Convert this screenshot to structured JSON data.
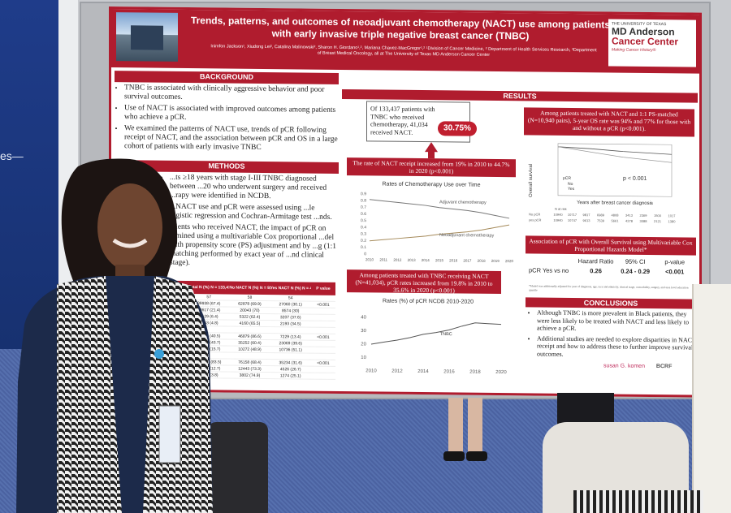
{
  "banner": {
    "text": "es—"
  },
  "poster": {
    "title": "Trends, patterns, and outcomes of neoadjuvant chemotherapy (NACT) use among patients with early invasive triple negative breast cancer (TNBC)",
    "authors": "Inimfon Jackson¹, Xiudong Lei², Catalina Malinowski², Sharon H. Giordano¹,², Mariana Chavez-MacGregor¹,² ¹Division of Cancer Medicine, ² Department of Health Services Research, ³Department of Breast Medical Oncology, all at The University of Texas MD Anderson Cancer Center",
    "logo": {
      "line1": "THE UNIVERSITY OF TEXAS",
      "line2": "MD Anderson",
      "line3": "Cancer Center",
      "tagline": "Making Cancer History®"
    },
    "background": {
      "heading": "BACKGROUND",
      "bullets": [
        "TNBC is associated with clinically aggressive behavior and poor survival outcomes.",
        "Use of NACT is associated with improved outcomes among patients who achieve a pCR.",
        "We examined the patterns of NACT use, trends of pCR following receipt of NACT, and the association between pCR and OS in a large cohort of patients with early invasive TNBC"
      ]
    },
    "methods": {
      "heading": "METHODS",
      "bullets": [
        "...ts ≥18 years with stage I-III TNBC diagnosed between ...20 who underwent surgery and received ...rapy were identified in NCDB.",
        "...NACT use and pCR were assessed using ...le logistic regression and Cochran-Armitage test ...nds.",
        "...ients who received NACT, the impact of pCR on ...mined using a multivariable Cox proportional ...del with propensity score (PS) adjustment and by ...g (1:1 matching performed by exact year of ...nd clinical stage)."
      ]
    },
    "table": {
      "headers": [
        "",
        "Total N (%)\nN = 133,437",
        "No NACT N (%)\nN = 92,403",
        "Yes NACT N (%)\nN = 41,034",
        "P value"
      ],
      "rows": [
        [
          "",
          "57",
          "58",
          "54",
          ""
        ],
        [
          "",
          "89938 (67.4)",
          "62878 (69.9)",
          "27060 (30.1)",
          "<0.001"
        ],
        [
          "",
          "28617 (21.4)",
          "20043 (70)",
          "8574 (30)",
          ""
        ],
        [
          "",
          "8529 (6.4)",
          "5322 (62.4)",
          "3207 (37.6)",
          ""
        ],
        [
          "",
          "6353 (4.8)",
          "4160 (65.5)",
          "2193 (34.5)",
          ""
        ],
        [
          "",
          "",
          "",
          "",
          ""
        ],
        [
          "",
          "54108 (40.5)",
          "46879 (86.6)",
          "7229 (13.4)",
          "<0.001"
        ],
        [
          "",
          "58321 (43.7)",
          "35252 (60.4)",
          "23069 (39.6)",
          ""
        ],
        [
          "",
          "21008 (15.7)",
          "10272 (48.9)",
          "10736 (51.1)",
          ""
        ],
        [
          "",
          "",
          "",
          "",
          ""
        ],
        [
          "",
          "111392 (83.5)",
          "76158 (68.4)",
          "35234 (31.6)",
          "<0.001"
        ],
        [
          "",
          "16969 (12.7)",
          "12443 (73.3)",
          "4526 (26.7)",
          ""
        ],
        [
          "",
          "5076 (3.8)",
          "3802 (74.9)",
          "1274 (25.1)",
          ""
        ]
      ]
    },
    "results_heading": "RESULTS",
    "summary_box": "Of 133,437 patients with TNBC who received chemotherapy, 41,034 received NACT.",
    "summary_pill": "30.75%",
    "nact_callout": "The rate of NACT receipt increased from 19% in 2010 to 44.7% in 2020 (p<0.001)",
    "pcr_callout": "Among patients treated with TNBC receiving NACT (N=41,034), pCR rates increased from 19.8% in 2010 to 35.6% in 2020 (p<0.001)",
    "os_callout": "Among patients treated with NACT and 1:1 PS-matched (N=10,940 pairs), 5-year OS rate was 94% and 77% for those with and without a pCR (p<0.001).",
    "km": {
      "ylabel": "Overall survival",
      "xlabel": "Years after breast cancer diagnosis",
      "legend_title": "pCR",
      "legend": [
        "No",
        "Yes"
      ],
      "pvalue": "p < 0.001",
      "risk_label": "N at risk",
      "risk_rows": [
        {
          "label": "No pCR",
          "values": [
            "10940",
            "10717",
            "9817",
            "6989",
            "4808",
            "3413",
            "2369",
            "1500",
            "1017"
          ]
        },
        {
          "label": "yes pCR",
          "values": [
            "10940",
            "10747",
            "9613",
            "7539",
            "5661",
            "4378",
            "3088",
            "2121",
            "1380"
          ]
        }
      ]
    },
    "assoc": {
      "heading": "Association of pCR with Overall Survival using Multivariable Cox Proportional Hazards Model*",
      "cols": [
        "Hazard Ratio",
        "95% CI",
        "p-value"
      ],
      "row": [
        "pCR Yes vs no",
        "0.26",
        "0.24 - 0.29",
        "<0.001"
      ],
      "note": "*Model was additionally adjusted for year of diagnosis, age, race and ethnicity, clinical stage, comorbidity, surgery, and area level education quartile"
    },
    "conclusions": {
      "heading": "CONCLUSIONS",
      "bullets": [
        "Although TNBC is more prevalent in Black patients, they were less likely to be treated with NACT and less likely to achieve a pCR.",
        "Additional studies are needed to explore disparities in NACT receipt and how to address these to further improve survival outcomes."
      ]
    },
    "sponsors": [
      "susan G. komen",
      "BCRF"
    ]
  },
  "chart_data": [
    {
      "type": "line",
      "title": "Rates of Chemotherapy Use over Time",
      "x": [
        "2010",
        "2011",
        "2012",
        "2013",
        "2014",
        "2015",
        "2016",
        "2017",
        "2018",
        "2019",
        "2020"
      ],
      "ylim": [
        0,
        0.9
      ],
      "yticks": [
        "0.9",
        "0.8",
        "0.7",
        "0.6",
        "0.5",
        "0.4",
        "0.3",
        "0.2",
        "0.1",
        "0"
      ],
      "series": [
        {
          "name": "Adjuvant chemotherapy",
          "values": [
            0.81,
            0.79,
            0.77,
            0.75,
            0.73,
            0.7,
            0.68,
            0.66,
            0.63,
            0.59,
            0.55
          ]
        },
        {
          "name": "Neoadjuvant chemotherapy",
          "values": [
            0.19,
            0.21,
            0.23,
            0.25,
            0.27,
            0.3,
            0.32,
            0.34,
            0.37,
            0.41,
            0.45
          ]
        }
      ]
    },
    {
      "type": "line",
      "title": "Rates (%) of pCR NCDB 2010-2020",
      "x": [
        2010,
        2011,
        2012,
        2013,
        2014,
        2015,
        2016,
        2017,
        2018,
        2019,
        2020
      ],
      "xticks": [
        "2010",
        "2012",
        "2014",
        "2016",
        "2018",
        "2020"
      ],
      "yticks": [
        "40",
        "30",
        "20",
        "10"
      ],
      "ylim": [
        5,
        45
      ],
      "series": [
        {
          "name": "TNBC",
          "values": [
            19.8,
            21.5,
            23.0,
            25.0,
            27.5,
            29.0,
            31.0,
            34.0,
            36.5,
            36.0,
            35.6
          ]
        }
      ]
    }
  ]
}
